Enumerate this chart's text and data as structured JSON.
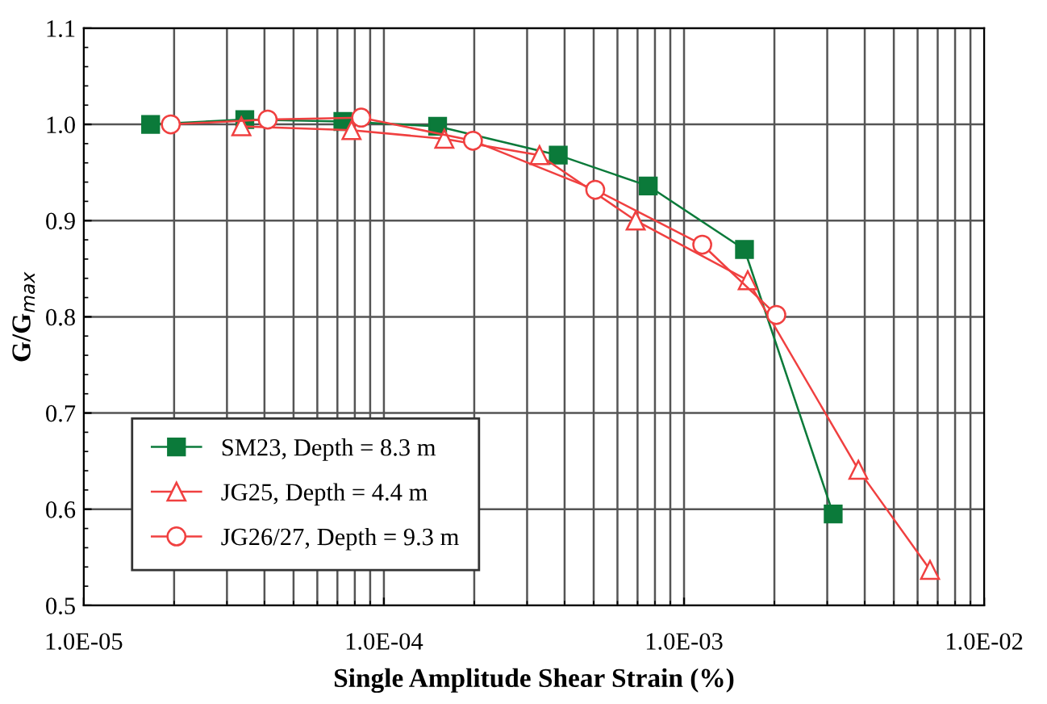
{
  "chart_data": {
    "type": "line",
    "xlabel": "Single Amplitude Shear Strain (%)",
    "ylabel": "G/G$_{max}$",
    "log": "x",
    "xlim": [
      1e-05,
      0.01
    ],
    "ylim": [
      0.5,
      1.1
    ],
    "xticks": [
      {
        "value": 1e-05,
        "label": "1.0E-05"
      },
      {
        "value": 0.0001,
        "label": "1.0E-04"
      },
      {
        "value": 0.001,
        "label": "1.0E-03"
      },
      {
        "value": 0.01,
        "label": "1.0E-02"
      }
    ],
    "yticks": [
      {
        "value": 0.5,
        "label": "0.5"
      },
      {
        "value": 0.6,
        "label": "0.6"
      },
      {
        "value": 0.7,
        "label": "0.7"
      },
      {
        "value": 0.8,
        "label": "0.8"
      },
      {
        "value": 0.9,
        "label": "0.9"
      },
      {
        "value": 1.0,
        "label": "1.0"
      },
      {
        "value": 1.1,
        "label": "1.1"
      }
    ],
    "grid": true,
    "legend": "bottom left",
    "series": [
      {
        "name": "SM23, Depth = 8.3 m",
        "color": "#0b7a3a",
        "marker": "square",
        "x": [
          1.67e-05,
          3.44e-05,
          7.3e-05,
          0.000151,
          0.000381,
          0.00076,
          0.00159,
          0.00314
        ],
        "values": [
          1.0,
          1.005,
          1.003,
          0.998,
          0.968,
          0.936,
          0.87,
          0.595
        ]
      },
      {
        "name": "JG25, Depth = 4.4 m",
        "color": "#f04040",
        "marker": "triangle",
        "x": [
          3.35e-05,
          7.8e-05,
          0.000159,
          0.00033,
          0.00069,
          0.00163,
          0.00381,
          0.0066
        ],
        "values": [
          0.998,
          0.994,
          0.985,
          0.968,
          0.9,
          0.838,
          0.641,
          0.537
        ]
      },
      {
        "name": "JG26/27, Depth = 9.3 m",
        "color": "#f04040",
        "marker": "circle",
        "x": [
          1.95e-05,
          4.1e-05,
          8.4e-05,
          0.000198,
          0.000506,
          0.00115,
          0.00203
        ],
        "values": [
          1.0,
          1.005,
          1.007,
          0.983,
          0.932,
          0.875,
          0.802
        ]
      }
    ]
  }
}
